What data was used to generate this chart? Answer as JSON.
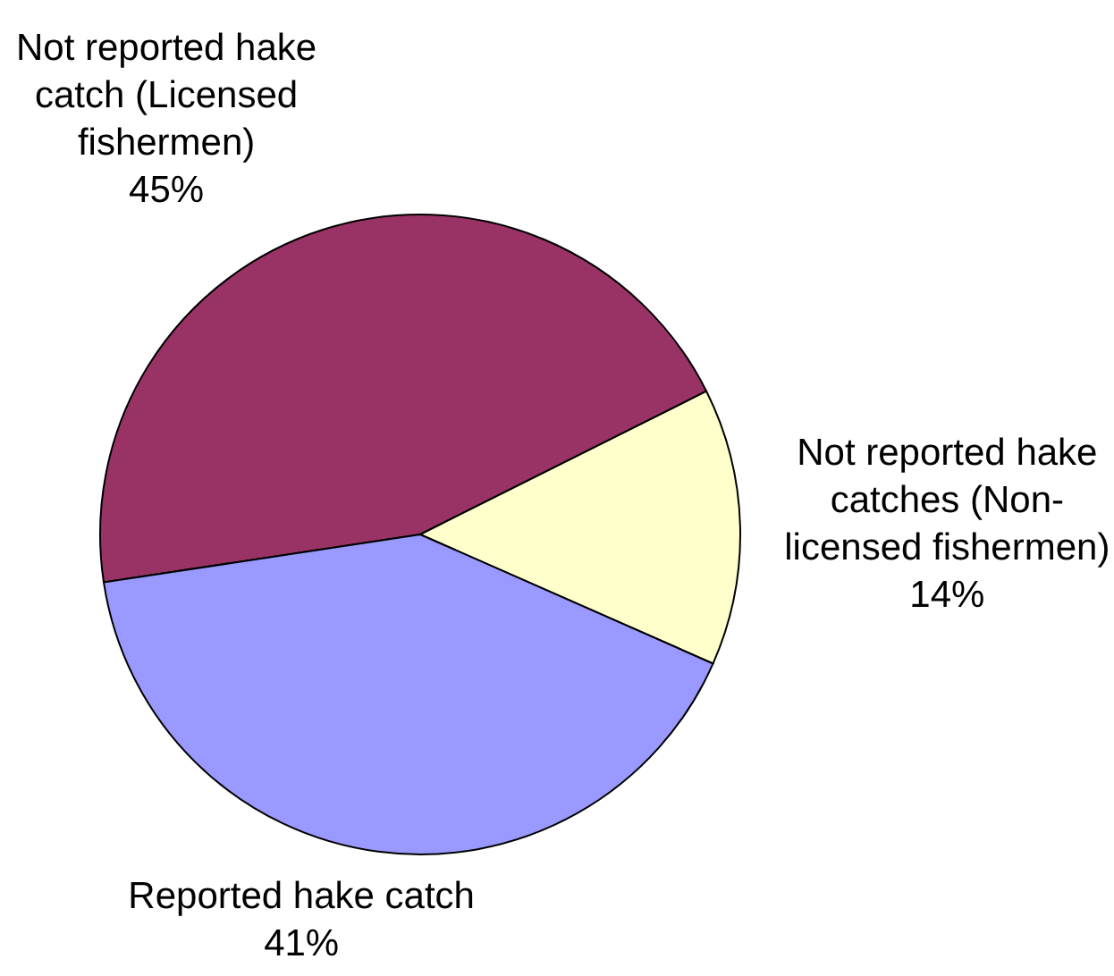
{
  "chart_data": {
    "type": "pie",
    "categories": [
      "Not reported hake catch (Licensed fishermen)",
      "Not reported hake catches (Non-licensed fishermen)",
      "Reported hake catch"
    ],
    "values": [
      45,
      14,
      41
    ],
    "colors": [
      "#993366",
      "#ffffcc",
      "#9999ff"
    ],
    "value_labels": [
      "45%",
      "14%",
      "41%"
    ]
  }
}
